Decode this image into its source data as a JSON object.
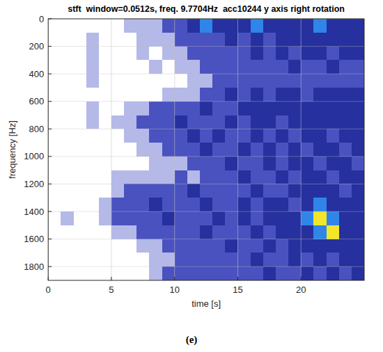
{
  "chart_data": {
    "type": "heatmap",
    "title": "stft  window=0.0512s, freq. 9.7704Hz  acc10244 y axis right rotation",
    "x_label": "time [s]",
    "y_label": "frequency [Hz]",
    "caption": "(e)",
    "xlim": [
      0,
      25
    ],
    "ylim": [
      1900,
      0
    ],
    "xticks": [
      0,
      5,
      10,
      15,
      20
    ],
    "yticks": [
      0,
      200,
      400,
      600,
      800,
      1000,
      1200,
      1400,
      1600,
      1800
    ],
    "grid": true,
    "x_edges": [
      0,
      1,
      2,
      3,
      4,
      5,
      6,
      7,
      8,
      9,
      10,
      11,
      12,
      13,
      14,
      15,
      16,
      17,
      18,
      19,
      20,
      21,
      22,
      23,
      24,
      25
    ],
    "y_edges": [
      0,
      100,
      200,
      300,
      400,
      500,
      600,
      700,
      800,
      900,
      1000,
      1100,
      1200,
      1300,
      1400,
      1500,
      1600,
      1700,
      1800,
      1900
    ],
    "cells": [
      [
        0,
        0,
        0,
        0,
        0,
        0,
        1,
        1,
        1,
        2,
        2,
        3,
        4,
        3,
        3,
        3,
        4,
        3,
        3,
        3,
        3,
        4,
        3,
        3,
        3
      ],
      [
        0,
        0,
        0,
        1,
        0,
        0,
        0,
        1,
        1,
        1,
        2,
        2,
        2,
        2,
        3,
        2,
        3,
        2,
        3,
        3,
        3,
        3,
        3,
        3,
        3
      ],
      [
        0,
        0,
        0,
        1,
        0,
        0,
        0,
        1,
        0,
        1,
        1,
        2,
        2,
        2,
        2,
        2,
        3,
        2,
        3,
        2,
        3,
        3,
        2,
        3,
        3
      ],
      [
        0,
        0,
        0,
        1,
        0,
        0,
        0,
        0,
        1,
        0,
        1,
        1,
        2,
        2,
        2,
        2,
        2,
        2,
        2,
        3,
        2,
        2,
        3,
        2,
        2
      ],
      [
        0,
        0,
        0,
        1,
        0,
        0,
        0,
        0,
        0,
        0,
        0,
        1,
        1,
        2,
        2,
        2,
        2,
        2,
        2,
        2,
        2,
        2,
        2,
        2,
        2
      ],
      [
        0,
        0,
        0,
        0,
        0,
        0,
        0,
        0,
        0,
        1,
        1,
        1,
        2,
        2,
        3,
        2,
        3,
        2,
        3,
        3,
        2,
        3,
        3,
        3,
        3
      ],
      [
        0,
        0,
        0,
        1,
        0,
        0,
        1,
        1,
        2,
        2,
        2,
        2,
        3,
        2,
        2,
        3,
        3,
        3,
        3,
        3,
        3,
        3,
        3,
        3,
        3
      ],
      [
        0,
        0,
        0,
        1,
        0,
        1,
        1,
        2,
        2,
        2,
        3,
        2,
        2,
        2,
        3,
        2,
        3,
        3,
        2,
        3,
        3,
        3,
        3,
        3,
        3
      ],
      [
        0,
        0,
        0,
        0,
        0,
        0,
        1,
        1,
        2,
        2,
        2,
        3,
        2,
        3,
        2,
        2,
        3,
        2,
        3,
        2,
        3,
        3,
        2,
        3,
        3
      ],
      [
        0,
        0,
        0,
        0,
        0,
        0,
        0,
        1,
        1,
        2,
        2,
        2,
        3,
        2,
        2,
        3,
        2,
        3,
        2,
        3,
        2,
        3,
        3,
        2,
        3
      ],
      [
        0,
        0,
        0,
        0,
        0,
        0,
        0,
        0,
        1,
        1,
        1,
        2,
        2,
        2,
        3,
        2,
        2,
        3,
        2,
        3,
        3,
        2,
        3,
        3,
        2
      ],
      [
        0,
        0,
        0,
        0,
        0,
        1,
        1,
        1,
        1,
        1,
        2,
        1,
        2,
        2,
        2,
        3,
        2,
        2,
        3,
        2,
        3,
        3,
        2,
        3,
        3
      ],
      [
        0,
        0,
        0,
        0,
        0,
        1,
        2,
        2,
        2,
        2,
        2,
        3,
        2,
        2,
        2,
        2,
        3,
        2,
        2,
        3,
        3,
        3,
        3,
        2,
        3
      ],
      [
        0,
        0,
        0,
        0,
        1,
        2,
        2,
        2,
        3,
        2,
        2,
        2,
        3,
        2,
        2,
        3,
        2,
        3,
        3,
        2,
        3,
        4,
        3,
        3,
        3
      ],
      [
        0,
        1,
        0,
        0,
        1,
        2,
        2,
        2,
        2,
        3,
        2,
        2,
        2,
        3,
        2,
        3,
        2,
        3,
        3,
        3,
        4,
        5,
        4,
        3,
        3
      ],
      [
        0,
        0,
        0,
        0,
        0,
        1,
        1,
        2,
        2,
        2,
        2,
        2,
        3,
        2,
        2,
        2,
        3,
        2,
        3,
        3,
        3,
        4,
        5,
        3,
        3
      ],
      [
        0,
        0,
        0,
        0,
        0,
        0,
        0,
        1,
        1,
        2,
        2,
        2,
        2,
        2,
        3,
        2,
        2,
        3,
        2,
        3,
        3,
        3,
        3,
        3,
        3
      ],
      [
        0,
        0,
        0,
        0,
        0,
        0,
        0,
        0,
        1,
        1,
        2,
        2,
        2,
        2,
        2,
        2,
        3,
        2,
        2,
        3,
        2,
        3,
        2,
        3,
        3
      ],
      [
        0,
        0,
        0,
        0,
        0,
        0,
        0,
        0,
        1,
        2,
        2,
        2,
        2,
        2,
        2,
        2,
        2,
        3,
        2,
        2,
        3,
        2,
        3,
        2,
        3
      ]
    ]
  }
}
